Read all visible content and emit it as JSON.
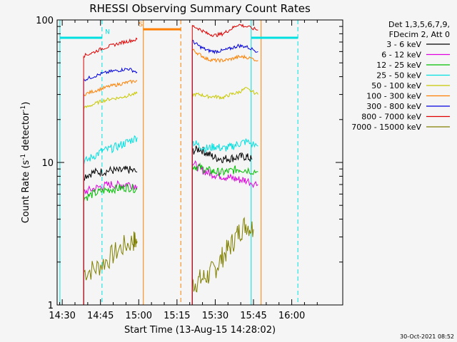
{
  "chart_data": {
    "type": "line",
    "title": "RHESSI Observing Summary Count Rates",
    "xlabel": "Start Time (13-Aug-15 14:28:02)",
    "ylabel_main": "Count Rate (s",
    "ylabel_sup": "-1",
    "ylabel_tail": " detector",
    "ylabel_end": ")",
    "xlim": [
      14.4667,
      16.3333
    ],
    "ylim": [
      1,
      100
    ],
    "yscale": "log",
    "x_ticks": [
      {
        "v": 14.5,
        "label": "14:30"
      },
      {
        "v": 14.75,
        "label": "14:45"
      },
      {
        "v": 15.0,
        "label": "15:00"
      },
      {
        "v": 15.25,
        "label": "15:15"
      },
      {
        "v": 15.5,
        "label": "15:30"
      },
      {
        "v": 15.75,
        "label": "15:45"
      },
      {
        "v": 16.0,
        "label": "16:00"
      }
    ],
    "y_ticks": [
      {
        "v": 1,
        "label": "1"
      },
      {
        "v": 10,
        "label": "10"
      },
      {
        "v": 100,
        "label": "100"
      }
    ],
    "legend_header": [
      "Det 1,3,5,6,7,9,",
      "FDecim 2, Att 0"
    ],
    "legend_position": "right",
    "footer_date": "30-Oct-2021 08:52",
    "series": [
      {
        "name": "3 - 6 keV",
        "color": "#000000",
        "segments": [
          {
            "x": [
              14.64,
              14.7,
              14.76,
              14.82,
              14.88,
              14.93,
              14.99
            ],
            "y": [
              8.0,
              8.5,
              8.6,
              8.8,
              8.7,
              8.9,
              8.6
            ]
          },
          {
            "x": [
              15.35,
              15.4,
              15.45,
              15.5,
              15.55,
              15.6,
              15.65,
              15.7,
              15.74
            ],
            "y": [
              12.0,
              12.5,
              11.5,
              10.8,
              10.6,
              10.7,
              10.9,
              11.0,
              10.5
            ]
          }
        ]
      },
      {
        "name": "6 - 12 keV",
        "color": "#e000e0",
        "segments": [
          {
            "x": [
              14.64,
              14.7,
              14.76,
              14.82,
              14.88,
              14.93,
              14.99
            ],
            "y": [
              6.2,
              6.5,
              6.8,
              7.0,
              6.9,
              7.1,
              6.8
            ]
          },
          {
            "x": [
              15.35,
              15.4,
              15.45,
              15.5,
              15.55,
              15.6,
              15.65,
              15.7,
              15.78
            ],
            "y": [
              10.0,
              9.0,
              8.5,
              8.2,
              8.0,
              7.8,
              7.6,
              7.5,
              7.0
            ]
          }
        ]
      },
      {
        "name": "12 - 25 keV",
        "color": "#00c000",
        "segments": [
          {
            "x": [
              14.64,
              14.7,
              14.76,
              14.82,
              14.88,
              14.93,
              14.99
            ],
            "y": [
              5.6,
              6.0,
              6.3,
              6.5,
              6.6,
              6.7,
              6.5
            ]
          },
          {
            "x": [
              15.35,
              15.4,
              15.45,
              15.5,
              15.55,
              15.6,
              15.65,
              15.7,
              15.78
            ],
            "y": [
              9.5,
              9.2,
              8.8,
              8.6,
              8.5,
              8.7,
              9.0,
              8.9,
              8.6
            ]
          }
        ]
      },
      {
        "name": "25 - 50 keV",
        "color": "#00e0e0",
        "segments": [
          {
            "x": [
              14.64,
              14.7,
              14.76,
              14.82,
              14.88,
              14.93,
              14.99
            ],
            "y": [
              10.0,
              11.0,
              12.0,
              12.5,
              13.2,
              14.0,
              15.0
            ]
          },
          {
            "x": [
              15.35,
              15.4,
              15.45,
              15.5,
              15.55,
              15.6,
              15.65,
              15.7,
              15.78
            ],
            "y": [
              14.0,
              13.0,
              12.5,
              13.0,
              12.5,
              12.8,
              13.5,
              14.0,
              13.0
            ]
          }
        ]
      },
      {
        "name": "50 - 100 keV",
        "color": "#c8c800",
        "segments": [
          {
            "x": [
              14.64,
              14.7,
              14.76,
              14.82,
              14.88,
              14.93,
              14.99
            ],
            "y": [
              24.0,
              25.5,
              27.0,
              28.0,
              28.5,
              29.5,
              30.5
            ]
          },
          {
            "x": [
              15.35,
              15.4,
              15.45,
              15.5,
              15.55,
              15.6,
              15.65,
              15.7,
              15.78
            ],
            "y": [
              30.0,
              30.0,
              29.0,
              29.0,
              28.5,
              30.0,
              31.0,
              33.0,
              30.0
            ]
          }
        ]
      },
      {
        "name": "100 - 300 keV",
        "color": "#ff8000",
        "segments": [
          {
            "x": [
              14.64,
              14.7,
              14.76,
              14.82,
              14.88,
              14.93,
              14.99
            ],
            "y": [
              30.0,
              31.5,
              33.0,
              34.5,
              35.5,
              36.5,
              37.5
            ]
          },
          {
            "x": [
              15.35,
              15.4,
              15.45,
              15.5,
              15.55,
              15.6,
              15.65,
              15.7,
              15.78
            ],
            "y": [
              62.0,
              57.0,
              53.0,
              52.0,
              52.0,
              53.0,
              55.0,
              55.0,
              52.0
            ]
          }
        ]
      },
      {
        "name": "300 - 800 keV",
        "color": "#0000e0",
        "segments": [
          {
            "x": [
              14.64,
              14.7,
              14.76,
              14.82,
              14.88,
              14.93,
              14.99
            ],
            "y": [
              38.0,
              40.0,
              42.0,
              43.5,
              44.5,
              45.5,
              43.0
            ]
          },
          {
            "x": [
              15.35,
              15.4,
              15.45,
              15.5,
              15.55,
              15.6,
              15.65,
              15.7,
              15.78
            ],
            "y": [
              71.0,
              65.0,
              61.0,
              60.0,
              61.0,
              63.0,
              66.0,
              65.0,
              60.0
            ]
          }
        ]
      },
      {
        "name": "800 - 7000 keV",
        "color": "#e00000",
        "segments": [
          {
            "x": [
              14.64,
              14.7,
              14.76,
              14.82,
              14.88,
              14.93,
              14.99
            ],
            "y": [
              56.0,
              59.0,
              63.0,
              66.0,
              69.0,
              71.0,
              73.0
            ]
          },
          {
            "x": [
              15.35,
              15.4,
              15.45,
              15.5,
              15.55,
              15.6,
              15.65,
              15.7,
              15.78
            ],
            "y": [
              91.0,
              86.0,
              80.0,
              78.0,
              80.0,
              86.0,
              93.0,
              90.0,
              85.0
            ]
          }
        ]
      },
      {
        "name": "7000 - 15000 keV",
        "color": "#808000",
        "segments": [
          {
            "x": [
              14.64,
              14.72,
              14.8,
              14.88,
              14.96,
              14.99
            ],
            "y": [
              1.7,
              1.8,
              2.1,
              2.5,
              2.8,
              2.8
            ]
          },
          {
            "x": [
              15.35,
              15.4,
              15.45,
              15.5,
              15.55,
              15.6,
              15.65,
              15.7,
              15.75
            ],
            "y": [
              1.4,
              1.5,
              1.6,
              1.8,
              2.2,
              2.6,
              3.2,
              3.7,
              3.4
            ]
          }
        ]
      }
    ],
    "markers": [
      {
        "type": "solid",
        "color": "#00e0e0",
        "x": 14.485
      },
      {
        "type": "dashed",
        "color": "#00e0e0",
        "x": 14.76
      },
      {
        "type": "solid",
        "color": "#ff8000",
        "x": 15.03
      },
      {
        "type": "dashed",
        "color": "#ff8000",
        "x": 15.275
      },
      {
        "type": "solid",
        "color": "#00e0e0",
        "x": 15.735
      },
      {
        "type": "solid",
        "color": "#ff8000",
        "x": 15.8
      },
      {
        "type": "dashed",
        "color": "#00e0e0",
        "x": 16.04
      }
    ],
    "bars": [
      {
        "color": "#00e0e0",
        "x1": 14.485,
        "x2": 14.76,
        "y": 75
      },
      {
        "color": "#ff8000",
        "x1": 15.03,
        "x2": 15.275,
        "y": 86
      },
      {
        "color": "#00e0e0",
        "x1": 15.735,
        "x2": 16.04,
        "y": 75
      }
    ],
    "annotations": [
      {
        "text": "N",
        "color": "#00e0e0",
        "x": 14.78,
        "y": 80
      },
      {
        "text": "S",
        "color": "#ff8000",
        "x": 15.0,
        "y": 90
      }
    ]
  }
}
